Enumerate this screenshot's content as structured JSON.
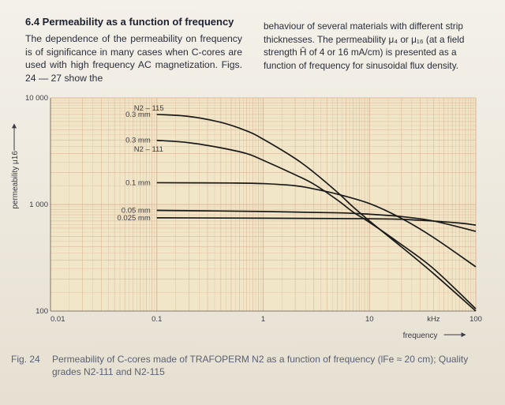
{
  "section": {
    "heading": "6.4 Permeability as a function of frequency",
    "left_text": "The dependence of the permeability on frequency is of significance in many cases when C-cores are used with high frequency AC magnetization. Figs. 24 — 27 show the",
    "right_text": "behaviour of several materials with different strip thicknesses. The permeability μ₄ or μ₁₆ (at a field strength Ĥ of 4 or 16 mA/cm) is presented as a function of frequency for sinusoidal flux density."
  },
  "figure": {
    "number": "Fig. 24",
    "caption": "Permeability of C-cores made of TRAFOPERM N2 as a function of frequency (lFe ≈ 20 cm); Quality grades N2-111 and N2-115"
  },
  "colors": {
    "grid_bg": "#f2e6c8",
    "grid_line": "#dbb99a",
    "curve": "#1a1a1a"
  },
  "chart_data": {
    "type": "line",
    "title": "",
    "xlabel": "frequency",
    "xunit": "kHz",
    "ylabel": "permeability μ16",
    "xscale": "log",
    "yscale": "log",
    "xlim": [
      0.01,
      100
    ],
    "ylim": [
      100,
      10000
    ],
    "x_ticks": [
      "0.01",
      "0.1",
      "1",
      "10",
      "100"
    ],
    "y_ticks": [
      "100",
      "1 000",
      "10 000"
    ],
    "grid": true,
    "series": [
      {
        "name": "0.3 mm",
        "points": [
          [
            0.1,
            7000
          ],
          [
            0.2,
            6700
          ],
          [
            0.4,
            5900
          ],
          [
            0.7,
            4900
          ],
          [
            1,
            4100
          ],
          [
            2,
            2700
          ],
          [
            3,
            2000
          ],
          [
            5,
            1300
          ],
          [
            7,
            950
          ],
          [
            10,
            700
          ],
          [
            20,
            400
          ],
          [
            40,
            225
          ],
          [
            100,
            100
          ]
        ]
      },
      {
        "name": "0.3 mm",
        "points": [
          [
            0.1,
            4000
          ],
          [
            0.2,
            3800
          ],
          [
            0.4,
            3400
          ],
          [
            0.7,
            3000
          ],
          [
            1,
            2600
          ],
          [
            2,
            1900
          ],
          [
            3,
            1550
          ],
          [
            5,
            1100
          ],
          [
            7,
            850
          ],
          [
            10,
            680
          ],
          [
            20,
            420
          ],
          [
            40,
            250
          ],
          [
            100,
            105
          ]
        ]
      },
      {
        "name": "0.1 mm",
        "points": [
          [
            0.1,
            1600
          ],
          [
            0.5,
            1590
          ],
          [
            1,
            1570
          ],
          [
            2,
            1500
          ],
          [
            3,
            1400
          ],
          [
            5,
            1250
          ],
          [
            10,
            1020
          ],
          [
            20,
            740
          ],
          [
            40,
            490
          ],
          [
            100,
            260
          ]
        ]
      },
      {
        "name": "0.05 mm",
        "points": [
          [
            0.1,
            880
          ],
          [
            1,
            860
          ],
          [
            5,
            835
          ],
          [
            10,
            810
          ],
          [
            20,
            770
          ],
          [
            40,
            700
          ],
          [
            100,
            560
          ]
        ]
      },
      {
        "name": "0.025 mm",
        "points": [
          [
            0.1,
            750
          ],
          [
            10,
            735
          ],
          [
            30,
            710
          ],
          [
            70,
            670
          ],
          [
            100,
            640
          ]
        ]
      }
    ],
    "annotations": [
      {
        "text": "N2 – 115",
        "x": 0.1,
        "y": 8000
      },
      {
        "text": "N2 – 111",
        "x": 0.1,
        "y": 3300
      }
    ]
  }
}
